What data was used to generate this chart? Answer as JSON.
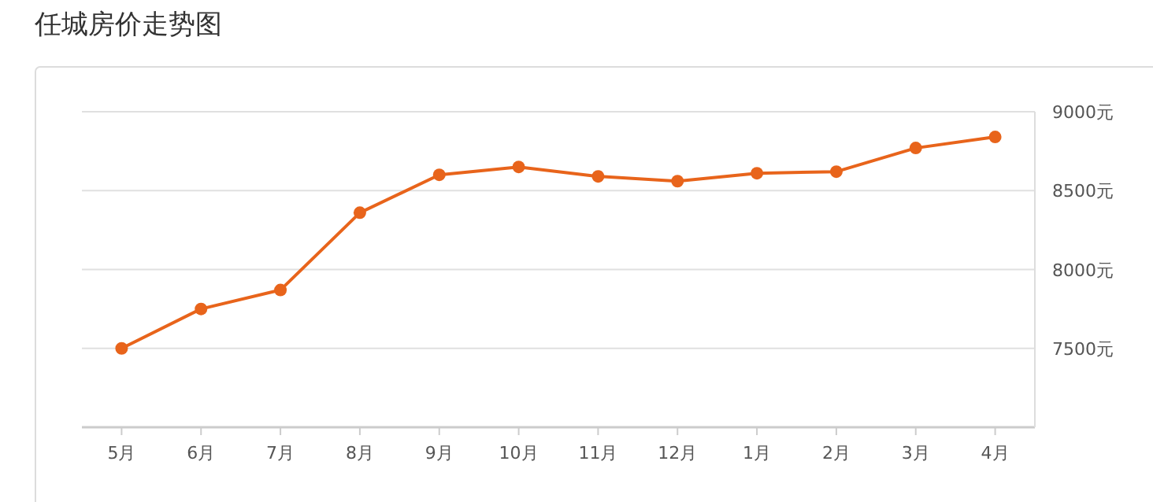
{
  "chart_data": {
    "type": "line",
    "title": "任城房价走势图",
    "categories": [
      "5月",
      "6月",
      "7月",
      "8月",
      "9月",
      "10月",
      "11月",
      "12月",
      "1月",
      "2月",
      "3月",
      "4月"
    ],
    "series": [
      {
        "color": "#e8641b",
        "values": [
          7500,
          7750,
          7870,
          8360,
          8600,
          8650,
          8590,
          8560,
          8610,
          8620,
          8770,
          8840
        ]
      }
    ],
    "ylim": [
      7000,
      9000
    ],
    "yticks": [
      {
        "value": 7500,
        "label": "7500元"
      },
      {
        "value": 8000,
        "label": "8000元"
      },
      {
        "value": 8500,
        "label": "8500元"
      },
      {
        "value": 9000,
        "label": "9000元"
      }
    ],
    "grid": "y",
    "marker": "circle",
    "line_style": "solid"
  }
}
